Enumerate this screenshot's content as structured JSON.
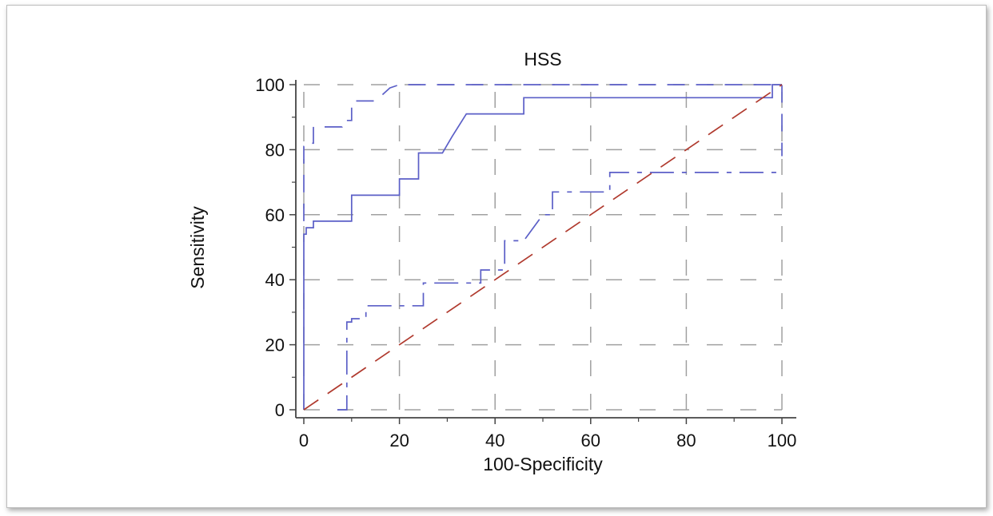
{
  "chart_data": {
    "type": "line",
    "title": "HSS",
    "xlabel": "100-Specificity",
    "ylabel": "Sensitivity",
    "xlim": [
      0,
      100
    ],
    "ylim": [
      0,
      100
    ],
    "xticks": [
      0,
      20,
      40,
      60,
      80,
      100
    ],
    "yticks": [
      0,
      20,
      40,
      60,
      80,
      100
    ],
    "grid": true,
    "colors": {
      "roc": "#5b5fc7",
      "diagonal": "#b03a2e",
      "grid": "#a0a0a0",
      "axis": "#444444"
    },
    "series": [
      {
        "role": "roc",
        "style": "solid",
        "x": [
          0,
          0,
          0.5,
          0.5,
          2,
          2,
          10,
          10,
          20,
          20,
          24,
          24,
          29,
          31,
          34,
          34,
          46,
          46,
          98,
          98,
          100
        ],
        "y": [
          0,
          54,
          54,
          56,
          56,
          58,
          58,
          66,
          66,
          71,
          71,
          79,
          79,
          84,
          91,
          91,
          91,
          96,
          96,
          100,
          100
        ]
      },
      {
        "role": "upper-ci",
        "style": "dashed",
        "x": [
          0,
          0,
          1,
          1,
          2,
          2,
          5,
          8,
          8,
          10,
          10,
          15,
          18,
          20,
          100,
          100
        ],
        "y": [
          58,
          81,
          81,
          82,
          82,
          87,
          87,
          87,
          89,
          89,
          95,
          95,
          99,
          100,
          100,
          78
        ]
      },
      {
        "role": "lower-ci",
        "style": "dashdot",
        "x": [
          7,
          9,
          9,
          10,
          10,
          13,
          13,
          25,
          25,
          37,
          37,
          42,
          42,
          46,
          50,
          52,
          52,
          64,
          64,
          100
        ],
        "y": [
          0,
          0,
          27,
          27,
          28,
          28,
          32,
          32,
          39,
          39,
          43,
          43,
          52,
          52,
          60,
          60,
          67,
          67,
          73,
          73
        ]
      },
      {
        "role": "diagonal",
        "style": "dashed",
        "x": [
          0,
          100
        ],
        "y": [
          0,
          100
        ]
      }
    ]
  }
}
